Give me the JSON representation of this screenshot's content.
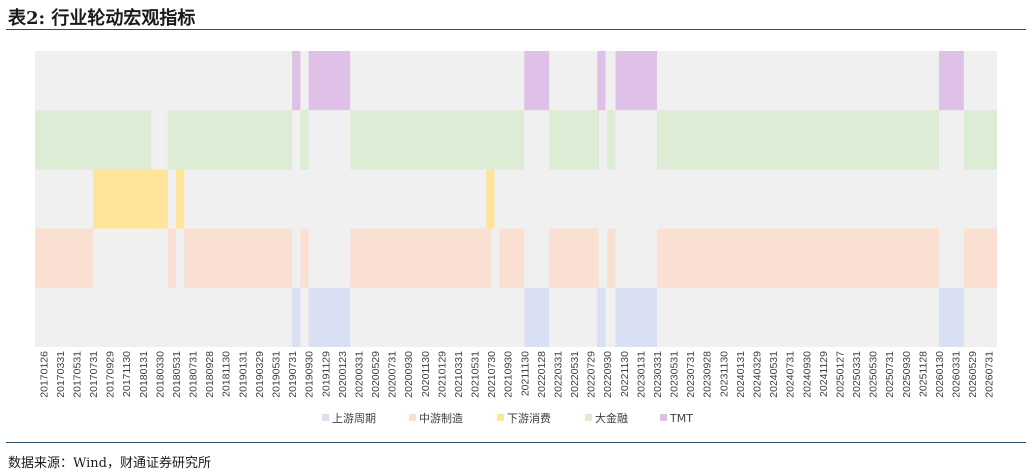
{
  "title": "表2: 行业轮动宏观指标",
  "source": "数据来源：Wind，财通证券研究所",
  "chart_data": {
    "type": "heatmap",
    "dates": [
      "20170126",
      "20170331",
      "20170531",
      "20170731",
      "20170929",
      "20171130",
      "20180131",
      "20180330",
      "20180531",
      "20180731",
      "20180928",
      "20181130",
      "20190131",
      "20190329",
      "20190531",
      "20190731",
      "20190930",
      "20191129",
      "20200123",
      "20200331",
      "20200529",
      "20200731",
      "20200930",
      "20201130",
      "20210129",
      "20210331",
      "20210531",
      "20210730",
      "20210930",
      "20211130",
      "20220128",
      "20220331",
      "20220531",
      "20220729",
      "20220930",
      "20221130",
      "20230131",
      "20230331",
      "20230531",
      "20230731",
      "20230928",
      "20231130",
      "20240131",
      "20240329",
      "20240531",
      "20240731",
      "20240930",
      "20241129",
      "20250127",
      "20250331",
      "20250530",
      "20250731",
      "20250930",
      "20251128",
      "20260130",
      "20260331",
      "20260529",
      "20260731"
    ],
    "series": [
      {
        "name": "TMT",
        "color": "#dfc1e8",
        "segments": [
          [
            15.5,
            16
          ],
          [
            16.5,
            19
          ],
          [
            29.5,
            31
          ],
          [
            33.9,
            34.4
          ],
          [
            35,
            37.5
          ],
          [
            54.5,
            56
          ]
        ]
      },
      {
        "name": "大金融",
        "color": "#dcecd5",
        "segments": [
          [
            0,
            7
          ],
          [
            8,
            15.5
          ],
          [
            16,
            16.5
          ],
          [
            19,
            29.5
          ],
          [
            31,
            34
          ],
          [
            34.5,
            35
          ],
          [
            37.5,
            54.5
          ],
          [
            56,
            58
          ]
        ]
      },
      {
        "name": "下游消费",
        "color": "#ffe59a",
        "segments": [
          [
            3.5,
            8
          ],
          [
            8.5,
            9
          ],
          [
            27.2,
            27.7
          ]
        ]
      },
      {
        "name": "中游制造",
        "color": "#f9e0d3",
        "segments": [
          [
            0,
            3.5
          ],
          [
            8,
            8.5
          ],
          [
            9,
            15.5
          ],
          [
            16,
            16.5
          ],
          [
            19,
            27.5
          ],
          [
            28,
            29.5
          ],
          [
            31,
            34
          ],
          [
            34.5,
            35
          ],
          [
            37.5,
            54.5
          ],
          [
            56,
            58
          ]
        ]
      },
      {
        "name": "上游周期",
        "color": "#d9e0f3",
        "segments": [
          [
            15.5,
            16
          ],
          [
            16.5,
            19
          ],
          [
            29.5,
            31
          ],
          [
            33.9,
            34.4
          ],
          [
            35,
            37.5
          ],
          [
            54.5,
            56
          ]
        ]
      }
    ],
    "background_color": "#f0f0f0",
    "legend": {
      "position": "bottom",
      "items": [
        {
          "label": "上游周期",
          "color": "#d9e0f3"
        },
        {
          "label": "中游制造",
          "color": "#f9e0d3"
        },
        {
          "label": "下游消费",
          "color": "#ffe59a"
        },
        {
          "label": "大金融",
          "color": "#dcecd5"
        },
        {
          "label": "TMT",
          "color": "#dfc1e8"
        }
      ]
    }
  }
}
